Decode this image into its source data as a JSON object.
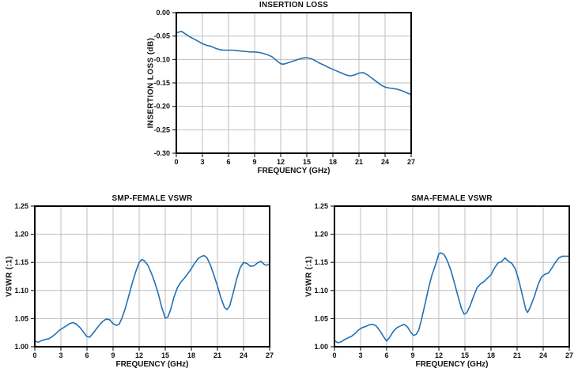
{
  "page": {
    "background": "#ffffff"
  },
  "styles": {
    "grid_color": "#bdbdbd",
    "axis_color": "#000000",
    "text_color": "#111111"
  },
  "chart_data": [
    {
      "id": "insertion-loss",
      "type": "line",
      "title": "INSERTION LOSS",
      "xlabel": "FREQUENCY (GHz)",
      "ylabel": "INSERTION LOSS (dB)",
      "xlim": [
        0,
        27
      ],
      "ylim": [
        -0.3,
        0.0
      ],
      "grid": true,
      "legend": "none",
      "line_color": "#2171b5",
      "xticks": [
        {
          "v": 0,
          "label": "0"
        },
        {
          "v": 3,
          "label": "3"
        },
        {
          "v": 6,
          "label": "6"
        },
        {
          "v": 9,
          "label": "9"
        },
        {
          "v": 12,
          "label": "12"
        },
        {
          "v": 15,
          "label": "15"
        },
        {
          "v": 18,
          "label": "18"
        },
        {
          "v": 21,
          "label": "21"
        },
        {
          "v": 24,
          "label": "24"
        },
        {
          "v": 27,
          "label": "27"
        }
      ],
      "yticks": [
        {
          "v": 0.0,
          "label": "0.00"
        },
        {
          "v": -0.05,
          "label": "-0.05"
        },
        {
          "v": -0.1,
          "label": "-0.10"
        },
        {
          "v": -0.15,
          "label": "-0.15"
        },
        {
          "v": -0.2,
          "label": "-0.20"
        },
        {
          "v": -0.25,
          "label": "-0.25"
        },
        {
          "v": -0.3,
          "label": "-0.30"
        }
      ],
      "points": [
        [
          0,
          -0.043
        ],
        [
          0.6,
          -0.04
        ],
        [
          1,
          -0.045
        ],
        [
          1.5,
          -0.051
        ],
        [
          2,
          -0.056
        ],
        [
          2.5,
          -0.061
        ],
        [
          3,
          -0.066
        ],
        [
          3.5,
          -0.07
        ],
        [
          4,
          -0.072
        ],
        [
          4.5,
          -0.076
        ],
        [
          5,
          -0.079
        ],
        [
          5.5,
          -0.08
        ],
        [
          6,
          -0.08
        ],
        [
          6.5,
          -0.08
        ],
        [
          7,
          -0.081
        ],
        [
          7.5,
          -0.082
        ],
        [
          8,
          -0.083
        ],
        [
          8.5,
          -0.084
        ],
        [
          9,
          -0.084
        ],
        [
          9.5,
          -0.085
        ],
        [
          10,
          -0.087
        ],
        [
          10.5,
          -0.09
        ],
        [
          11,
          -0.094
        ],
        [
          11.5,
          -0.102
        ],
        [
          12,
          -0.109
        ],
        [
          12.3,
          -0.11
        ],
        [
          12.7,
          -0.108
        ],
        [
          13,
          -0.106
        ],
        [
          13.5,
          -0.103
        ],
        [
          14,
          -0.1
        ],
        [
          14.5,
          -0.097
        ],
        [
          15,
          -0.096
        ],
        [
          15.5,
          -0.098
        ],
        [
          16,
          -0.103
        ],
        [
          16.5,
          -0.108
        ],
        [
          17,
          -0.112
        ],
        [
          17.5,
          -0.117
        ],
        [
          18,
          -0.121
        ],
        [
          18.5,
          -0.125
        ],
        [
          19,
          -0.129
        ],
        [
          19.5,
          -0.133
        ],
        [
          20,
          -0.135
        ],
        [
          20.5,
          -0.133
        ],
        [
          21,
          -0.129
        ],
        [
          21.5,
          -0.128
        ],
        [
          22,
          -0.133
        ],
        [
          22.5,
          -0.14
        ],
        [
          23,
          -0.147
        ],
        [
          23.5,
          -0.154
        ],
        [
          24,
          -0.159
        ],
        [
          24.5,
          -0.161
        ],
        [
          25,
          -0.162
        ],
        [
          25.5,
          -0.164
        ],
        [
          26,
          -0.167
        ],
        [
          26.5,
          -0.171
        ],
        [
          27,
          -0.175
        ]
      ]
    },
    {
      "id": "smp-female-vswr",
      "type": "line",
      "title": "SMP-FEMALE VSWR",
      "xlabel": "FREQUENCY (GHz)",
      "ylabel": "VSWR (:1)",
      "xlim": [
        0,
        27
      ],
      "ylim": [
        1.0,
        1.25
      ],
      "grid": true,
      "legend": "none",
      "line_color": "#2171b5",
      "xticks": [
        {
          "v": 0,
          "label": "0"
        },
        {
          "v": 3,
          "label": "3"
        },
        {
          "v": 6,
          "label": "6"
        },
        {
          "v": 9,
          "label": "9"
        },
        {
          "v": 12,
          "label": "12"
        },
        {
          "v": 15,
          "label": "15"
        },
        {
          "v": 18,
          "label": "18"
        },
        {
          "v": 21,
          "label": "21"
        },
        {
          "v": 24,
          "label": "24"
        },
        {
          "v": 27,
          "label": "27"
        }
      ],
      "yticks": [
        {
          "v": 1.25,
          "label": "1.25"
        },
        {
          "v": 1.2,
          "label": "1.20"
        },
        {
          "v": 1.15,
          "label": "1.15"
        },
        {
          "v": 1.1,
          "label": "1.10"
        },
        {
          "v": 1.05,
          "label": "1.05"
        },
        {
          "v": 1.0,
          "label": "1.00"
        }
      ],
      "points": [
        [
          0,
          1.01
        ],
        [
          0.4,
          1.008
        ],
        [
          0.8,
          1.011
        ],
        [
          1.2,
          1.013
        ],
        [
          1.6,
          1.014
        ],
        [
          2,
          1.018
        ],
        [
          2.4,
          1.023
        ],
        [
          2.8,
          1.029
        ],
        [
          3.2,
          1.033
        ],
        [
          3.6,
          1.037
        ],
        [
          4,
          1.041
        ],
        [
          4.4,
          1.043
        ],
        [
          4.8,
          1.04
        ],
        [
          5.2,
          1.034
        ],
        [
          5.6,
          1.026
        ],
        [
          6,
          1.018
        ],
        [
          6.3,
          1.017
        ],
        [
          6.6,
          1.022
        ],
        [
          7,
          1.03
        ],
        [
          7.4,
          1.038
        ],
        [
          7.8,
          1.045
        ],
        [
          8.2,
          1.049
        ],
        [
          8.6,
          1.048
        ],
        [
          9,
          1.041
        ],
        [
          9.4,
          1.038
        ],
        [
          9.7,
          1.04
        ],
        [
          10,
          1.05
        ],
        [
          10.4,
          1.068
        ],
        [
          10.8,
          1.09
        ],
        [
          11.2,
          1.113
        ],
        [
          11.6,
          1.133
        ],
        [
          12,
          1.15
        ],
        [
          12.3,
          1.155
        ],
        [
          12.6,
          1.153
        ],
        [
          13,
          1.145
        ],
        [
          13.4,
          1.131
        ],
        [
          13.8,
          1.114
        ],
        [
          14.2,
          1.094
        ],
        [
          14.6,
          1.07
        ],
        [
          15,
          1.051
        ],
        [
          15.3,
          1.053
        ],
        [
          15.6,
          1.065
        ],
        [
          16,
          1.088
        ],
        [
          16.4,
          1.105
        ],
        [
          16.8,
          1.115
        ],
        [
          17.2,
          1.122
        ],
        [
          17.6,
          1.13
        ],
        [
          18,
          1.139
        ],
        [
          18.4,
          1.149
        ],
        [
          18.8,
          1.157
        ],
        [
          19.2,
          1.161
        ],
        [
          19.5,
          1.162
        ],
        [
          19.8,
          1.158
        ],
        [
          20.2,
          1.145
        ],
        [
          20.6,
          1.127
        ],
        [
          21,
          1.108
        ],
        [
          21.4,
          1.087
        ],
        [
          21.8,
          1.07
        ],
        [
          22.1,
          1.066
        ],
        [
          22.4,
          1.072
        ],
        [
          22.8,
          1.095
        ],
        [
          23.2,
          1.12
        ],
        [
          23.6,
          1.14
        ],
        [
          24,
          1.15
        ],
        [
          24.4,
          1.148
        ],
        [
          24.8,
          1.143
        ],
        [
          25.2,
          1.144
        ],
        [
          25.6,
          1.149
        ],
        [
          26,
          1.152
        ],
        [
          26.4,
          1.146
        ],
        [
          26.7,
          1.145
        ],
        [
          27,
          1.147
        ]
      ]
    },
    {
      "id": "sma-female-vswr",
      "type": "line",
      "title": "SMA-FEMALE VSWR",
      "xlabel": "FREQUENCY (GHz)",
      "ylabel": "VSWR (:1)",
      "xlim": [
        0,
        27
      ],
      "ylim": [
        1.0,
        1.25
      ],
      "grid": true,
      "legend": "none",
      "line_color": "#2171b5",
      "xticks": [
        {
          "v": 0,
          "label": "0"
        },
        {
          "v": 3,
          "label": "3"
        },
        {
          "v": 6,
          "label": "6"
        },
        {
          "v": 9,
          "label": "9"
        },
        {
          "v": 12,
          "label": "12"
        },
        {
          "v": 15,
          "label": "15"
        },
        {
          "v": 18,
          "label": "18"
        },
        {
          "v": 21,
          "label": "21"
        },
        {
          "v": 24,
          "label": "24"
        },
        {
          "v": 27,
          "label": "27"
        }
      ],
      "yticks": [
        {
          "v": 1.25,
          "label": "1.25"
        },
        {
          "v": 1.2,
          "label": "1.20"
        },
        {
          "v": 1.15,
          "label": "1.15"
        },
        {
          "v": 1.1,
          "label": "1.10"
        },
        {
          "v": 1.05,
          "label": "1.05"
        },
        {
          "v": 1.0,
          "label": "1.00"
        }
      ],
      "points": [
        [
          0,
          1.011
        ],
        [
          0.4,
          1.007
        ],
        [
          0.8,
          1.009
        ],
        [
          1.2,
          1.013
        ],
        [
          1.6,
          1.016
        ],
        [
          2,
          1.019
        ],
        [
          2.4,
          1.024
        ],
        [
          2.8,
          1.03
        ],
        [
          3.2,
          1.034
        ],
        [
          3.6,
          1.036
        ],
        [
          4,
          1.039
        ],
        [
          4.4,
          1.04
        ],
        [
          4.8,
          1.037
        ],
        [
          5.2,
          1.029
        ],
        [
          5.6,
          1.019
        ],
        [
          6,
          1.01
        ],
        [
          6.4,
          1.018
        ],
        [
          6.8,
          1.028
        ],
        [
          7.2,
          1.034
        ],
        [
          7.6,
          1.037
        ],
        [
          8,
          1.04
        ],
        [
          8.4,
          1.035
        ],
        [
          8.8,
          1.025
        ],
        [
          9.1,
          1.02
        ],
        [
          9.4,
          1.022
        ],
        [
          9.7,
          1.03
        ],
        [
          10,
          1.048
        ],
        [
          10.4,
          1.075
        ],
        [
          10.8,
          1.103
        ],
        [
          11.2,
          1.127
        ],
        [
          11.6,
          1.145
        ],
        [
          12,
          1.165
        ],
        [
          12.2,
          1.167
        ],
        [
          12.6,
          1.164
        ],
        [
          13,
          1.152
        ],
        [
          13.4,
          1.135
        ],
        [
          13.8,
          1.113
        ],
        [
          14.2,
          1.09
        ],
        [
          14.6,
          1.068
        ],
        [
          14.9,
          1.058
        ],
        [
          15.2,
          1.06
        ],
        [
          15.6,
          1.073
        ],
        [
          16,
          1.09
        ],
        [
          16.4,
          1.105
        ],
        [
          16.8,
          1.112
        ],
        [
          17.2,
          1.116
        ],
        [
          17.6,
          1.122
        ],
        [
          18,
          1.128
        ],
        [
          18.4,
          1.14
        ],
        [
          18.8,
          1.149
        ],
        [
          19.2,
          1.151
        ],
        [
          19.6,
          1.158
        ],
        [
          20,
          1.152
        ],
        [
          20.4,
          1.148
        ],
        [
          20.8,
          1.138
        ],
        [
          21.2,
          1.118
        ],
        [
          21.6,
          1.092
        ],
        [
          22,
          1.066
        ],
        [
          22.2,
          1.061
        ],
        [
          22.5,
          1.07
        ],
        [
          23,
          1.09
        ],
        [
          23.4,
          1.11
        ],
        [
          23.8,
          1.124
        ],
        [
          24.2,
          1.129
        ],
        [
          24.6,
          1.131
        ],
        [
          25,
          1.14
        ],
        [
          25.4,
          1.15
        ],
        [
          25.8,
          1.158
        ],
        [
          26.2,
          1.161
        ],
        [
          26.6,
          1.161
        ],
        [
          27,
          1.161
        ]
      ]
    }
  ]
}
